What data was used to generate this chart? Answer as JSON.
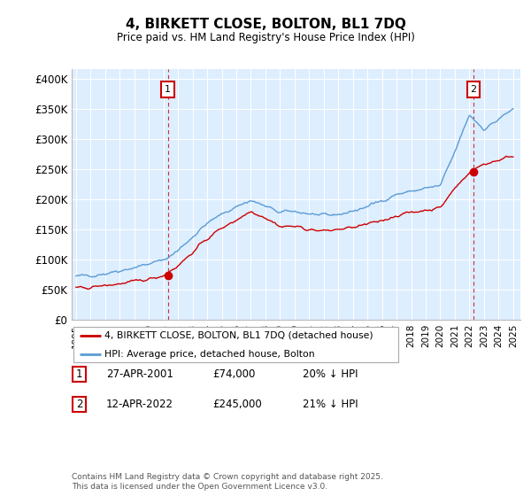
{
  "title": "4, BIRKETT CLOSE, BOLTON, BL1 7DQ",
  "subtitle": "Price paid vs. HM Land Registry's House Price Index (HPI)",
  "ylabel_ticks": [
    "£0",
    "£50K",
    "£100K",
    "£150K",
    "£200K",
    "£250K",
    "£300K",
    "£350K",
    "£400K"
  ],
  "ytick_values": [
    0,
    50000,
    100000,
    150000,
    200000,
    250000,
    300000,
    350000,
    400000
  ],
  "ylim": [
    0,
    415000
  ],
  "xlim_start": 1994.7,
  "xlim_end": 2025.5,
  "background_color": "#ffffff",
  "plot_bg_color": "#ddeeff",
  "grid_color": "#ffffff",
  "hpi_color": "#5b9bd5",
  "price_color": "#cc0000",
  "purchase1_x": 2001.3,
  "purchase1_y": 74000,
  "purchase2_x": 2022.28,
  "purchase2_y": 245000,
  "legend_entry1": "4, BIRKETT CLOSE, BOLTON, BL1 7DQ (detached house)",
  "legend_entry2": "HPI: Average price, detached house, Bolton",
  "table_row1": [
    "1",
    "27-APR-2001",
    "£74,000",
    "20% ↓ HPI"
  ],
  "table_row2": [
    "2",
    "12-APR-2022",
    "£245,000",
    "21% ↓ HPI"
  ],
  "footer": "Contains HM Land Registry data © Crown copyright and database right 2025.\nThis data is licensed under the Open Government Licence v3.0.",
  "xlabel_years": [
    1995,
    1996,
    1997,
    1998,
    1999,
    2000,
    2001,
    2002,
    2003,
    2004,
    2005,
    2006,
    2007,
    2008,
    2009,
    2010,
    2011,
    2012,
    2013,
    2014,
    2015,
    2016,
    2017,
    2018,
    2019,
    2020,
    2021,
    2022,
    2023,
    2024,
    2025
  ],
  "hpi_years": [
    1995,
    1996,
    1997,
    1998,
    1999,
    2000,
    2001,
    2002,
    2003,
    2004,
    2005,
    2006,
    2007,
    2008,
    2009,
    2010,
    2011,
    2012,
    2013,
    2014,
    2015,
    2016,
    2017,
    2018,
    2019,
    2020,
    2021,
    2022,
    2023,
    2024,
    2025
  ],
  "hpi_vals": [
    72000,
    74000,
    77000,
    82000,
    87000,
    93000,
    99000,
    115000,
    138000,
    160000,
    175000,
    188000,
    198000,
    188000,
    178000,
    180000,
    176000,
    172000,
    175000,
    180000,
    188000,
    198000,
    208000,
    213000,
    218000,
    222000,
    278000,
    340000,
    316000,
    332000,
    350000
  ],
  "price_years": [
    1995,
    1996,
    1997,
    1998,
    1999,
    2000,
    2001,
    2002,
    2003,
    2004,
    2005,
    2006,
    2007,
    2008,
    2009,
    2010,
    2011,
    2012,
    2013,
    2014,
    2015,
    2016,
    2017,
    2018,
    2019,
    2020,
    2021,
    2022,
    2023,
    2024,
    2025
  ],
  "price_vals": [
    52000,
    54000,
    57000,
    60000,
    63000,
    68000,
    74000,
    90000,
    112000,
    135000,
    152000,
    166000,
    180000,
    170000,
    155000,
    155000,
    150000,
    147000,
    150000,
    153000,
    158000,
    165000,
    173000,
    178000,
    182000,
    186000,
    218000,
    245000,
    258000,
    265000,
    272000
  ],
  "noise_seed": 42,
  "noise_scale_hpi": 3500,
  "noise_scale_price": 3000
}
